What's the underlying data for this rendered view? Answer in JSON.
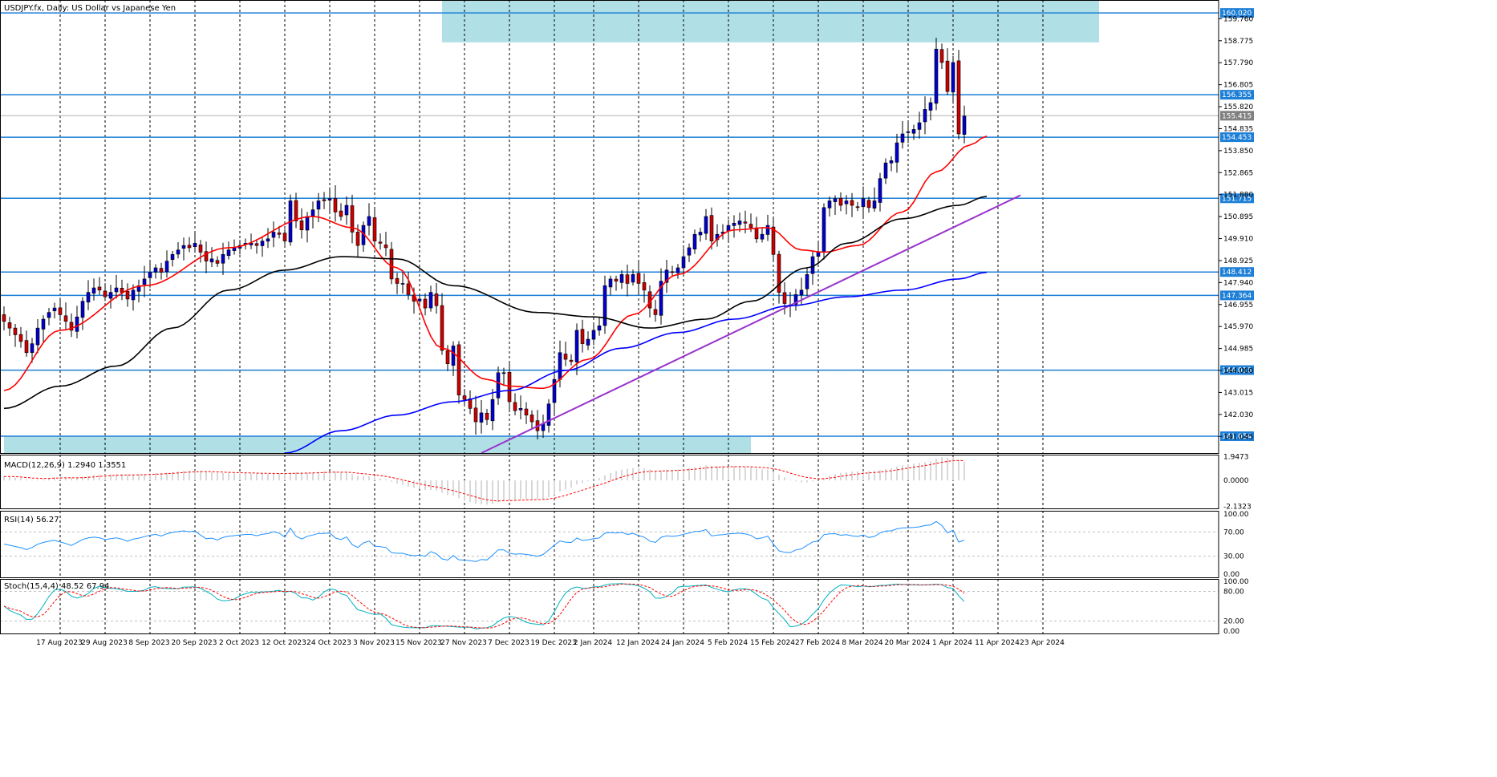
{
  "header": {
    "symbol_title": "USDJPY.fx, Daily:  US Dollar vs Japanese Yen"
  },
  "colors": {
    "grid": "#000000",
    "bull": "#0000cc",
    "bear": "#cc0000",
    "ma20": "#ff0000",
    "ma50": "#000000",
    "ma200": "#0000ff",
    "trendline": "#9933cc",
    "level_line": "#1e7fd6",
    "zone_fill": "#b0e0e6",
    "price_tag": "#1e7fd6",
    "current_tag": "#808080",
    "macd_hist": "#b0b0b0",
    "macd_signal": "#ff0000",
    "rsi": "#1e90ff",
    "stoch_main": "#00b0c0",
    "stoch_signal": "#ff0000"
  },
  "chart_data": [
    {
      "type": "candlestick",
      "panel": "price",
      "title": "USDJPY.fx, Daily:  US Dollar vs Japanese Yen",
      "ylim": [
        140.3,
        160.6
      ],
      "y_tick_labels": [
        "159.760",
        "158.775",
        "157.790",
        "156.805",
        "155.820",
        "154.835",
        "153.850",
        "152.865",
        "151.880",
        "150.895",
        "149.910",
        "148.925",
        "147.940",
        "146.955",
        "145.970",
        "144.985",
        "144.000",
        "143.015",
        "142.030",
        "141.045"
      ],
      "x_tick_labels": [
        "17 Aug 2023",
        "29 Aug 2023",
        "8 Sep 2023",
        "20 Sep 2023",
        "2 Oct 2023",
        "12 Oct 2023",
        "24 Oct 2023",
        "3 Nov 2023",
        "15 Nov 2023",
        "27 Nov 2023",
        "7 Dec 2023",
        "19 Dec 2023",
        "2 Jan 2024",
        "12 Jan 2024",
        "24 Jan 2024",
        "5 Feb 2024",
        "15 Feb 2024",
        "27 Feb 2024",
        "8 Mar 2024",
        "20 Mar 2024",
        "1 Apr 2024",
        "11 Apr 2024",
        "23 Apr 2024"
      ],
      "levels": [
        {
          "label": "160.020",
          "value": 160.02
        },
        {
          "label": "156.355",
          "value": 156.355
        },
        {
          "label": "154.453",
          "value": 154.453
        },
        {
          "label": "151.715",
          "value": 151.715
        },
        {
          "label": "148.412",
          "value": 148.412
        },
        {
          "label": "147.364",
          "value": 147.364
        },
        {
          "label": "144.016",
          "value": 144.016
        },
        {
          "label": "141.054",
          "value": 141.054
        }
      ],
      "current_price": {
        "label": "155.415",
        "value": 155.415
      },
      "zones": [
        {
          "bar_start": 78,
          "bar_end": 195,
          "top": 160.6,
          "bottom": 158.7
        },
        {
          "bar_start": 0,
          "bar_end": 133,
          "top": 141.054,
          "bottom": 140.3
        }
      ],
      "trendline": {
        "bar_start": 85,
        "value_start": 140.3,
        "bar_end": 181,
        "value_end": 151.85
      },
      "moving_averages": [
        {
          "color_key": "ma20",
          "anchors": [
            [
              0,
              143.1
            ],
            [
              10,
              145.8
            ],
            [
              25,
              147.8
            ],
            [
              40,
              149.5
            ],
            [
              55,
              150.9
            ],
            [
              62,
              150.4
            ],
            [
              70,
              148.6
            ],
            [
              78,
              145.0
            ],
            [
              86,
              143.6
            ],
            [
              90,
              143.3
            ],
            [
              96,
              143.2
            ],
            [
              104,
              144.5
            ],
            [
              112,
              146.5
            ],
            [
              120,
              148.3
            ],
            [
              130,
              150.3
            ],
            [
              136,
              150.4
            ],
            [
              142,
              149.4
            ],
            [
              146,
              149.3
            ],
            [
              152,
              149.6
            ],
            [
              160,
              151.1
            ],
            [
              166,
              152.9
            ],
            [
              172,
              154.1
            ],
            [
              175,
              154.5
            ]
          ]
        },
        {
          "color_key": "ma50",
          "anchors": [
            [
              0,
              142.3
            ],
            [
              10,
              143.3
            ],
            [
              20,
              144.2
            ],
            [
              30,
              145.9
            ],
            [
              40,
              147.6
            ],
            [
              50,
              148.5
            ],
            [
              60,
              149.1
            ],
            [
              70,
              149.0
            ],
            [
              80,
              147.8
            ],
            [
              95,
              146.6
            ],
            [
              105,
              146.4
            ],
            [
              115,
              145.9
            ],
            [
              125,
              146.3
            ],
            [
              133,
              147.1
            ],
            [
              143,
              148.6
            ],
            [
              150,
              149.7
            ],
            [
              160,
              150.8
            ],
            [
              170,
              151.4
            ],
            [
              175,
              151.8
            ]
          ]
        },
        {
          "color_key": "ma200",
          "anchors": [
            [
              50,
              140.3
            ],
            [
              60,
              141.3
            ],
            [
              70,
              142.0
            ],
            [
              80,
              142.6
            ],
            [
              90,
              143.1
            ],
            [
              100,
              144.0
            ],
            [
              110,
              145.0
            ],
            [
              120,
              145.7
            ],
            [
              130,
              146.3
            ],
            [
              140,
              146.9
            ],
            [
              150,
              147.3
            ],
            [
              160,
              147.6
            ],
            [
              170,
              148.1
            ],
            [
              175,
              148.4
            ]
          ]
        }
      ],
      "closes": [
        146.2,
        145.9,
        145.6,
        145.3,
        144.8,
        145.2,
        145.9,
        146.3,
        146.6,
        146.8,
        146.5,
        146.2,
        145.8,
        146.4,
        147.1,
        147.5,
        147.7,
        147.6,
        147.3,
        147.5,
        147.7,
        147.5,
        147.2,
        147.6,
        147.8,
        148.1,
        148.4,
        148.6,
        148.4,
        148.9,
        149.2,
        149.4,
        149.6,
        149.5,
        149.7,
        149.3,
        148.9,
        149.0,
        148.8,
        149.2,
        149.4,
        149.5,
        149.6,
        149.7,
        149.7,
        149.6,
        149.8,
        149.9,
        150.2,
        150.1,
        149.8,
        151.6,
        150.7,
        150.3,
        150.9,
        151.2,
        151.6,
        151.6,
        151.7,
        151.1,
        150.9,
        151.4,
        150.2,
        149.6,
        150.5,
        150.9,
        149.8,
        149.7,
        149.5,
        148.1,
        147.9,
        147.9,
        147.4,
        147.1,
        147.2,
        146.8,
        147.5,
        146.9,
        144.9,
        144.3,
        145.1,
        142.9,
        142.7,
        142.3,
        141.7,
        142.1,
        141.8,
        142.7,
        143.9,
        143.9,
        142.6,
        142.2,
        142.3,
        142.0,
        141.7,
        141.3,
        141.6,
        142.5,
        143.6,
        144.8,
        144.5,
        144.4,
        145.8,
        145.2,
        145.4,
        145.8,
        146.0,
        147.8,
        148.1,
        148.0,
        148.3,
        147.9,
        148.3,
        147.9,
        147.6,
        146.8,
        146.5,
        148.0,
        148.5,
        148.4,
        148.6,
        149.1,
        149.5,
        150.1,
        150.2,
        150.9,
        149.8,
        150.1,
        150.2,
        150.5,
        150.6,
        150.7,
        150.6,
        150.4,
        149.9,
        150.1,
        150.5,
        149.2,
        147.5,
        147.0,
        146.9,
        147.4,
        147.6,
        148.3,
        149.1,
        149.3,
        151.3,
        151.6,
        151.7,
        151.4,
        151.6,
        151.4,
        151.3,
        151.7,
        151.3,
        151.6,
        152.6,
        153.3,
        153.4,
        154.2,
        154.6,
        154.7,
        154.8,
        155.1,
        155.7,
        156.0,
        158.4,
        157.8,
        156.5,
        157.8,
        154.6,
        155.4
      ]
    },
    {
      "type": "line",
      "panel": "macd",
      "title": "MACD(12,26,9) 1.2940 1.3551",
      "ylim": [
        -2.3,
        2.12
      ],
      "y_tick_labels": [
        "1.9473",
        "0.0000",
        "-2.1323"
      ]
    },
    {
      "type": "line",
      "panel": "rsi",
      "title": "RSI(14) 56.27",
      "ylim": [
        -5,
        105
      ],
      "y_tick_labels": [
        "100.00",
        "70.00",
        "30.00",
        "0.00"
      ],
      "levels": [
        70,
        30
      ]
    },
    {
      "type": "line",
      "panel": "stoch",
      "title": "Stoch(15,4,4) 48.52 67.94",
      "ylim": [
        -5,
        105
      ],
      "y_tick_labels": [
        "100.00",
        "80.00",
        "20.00",
        "0.00"
      ],
      "levels": [
        80,
        20
      ]
    }
  ]
}
